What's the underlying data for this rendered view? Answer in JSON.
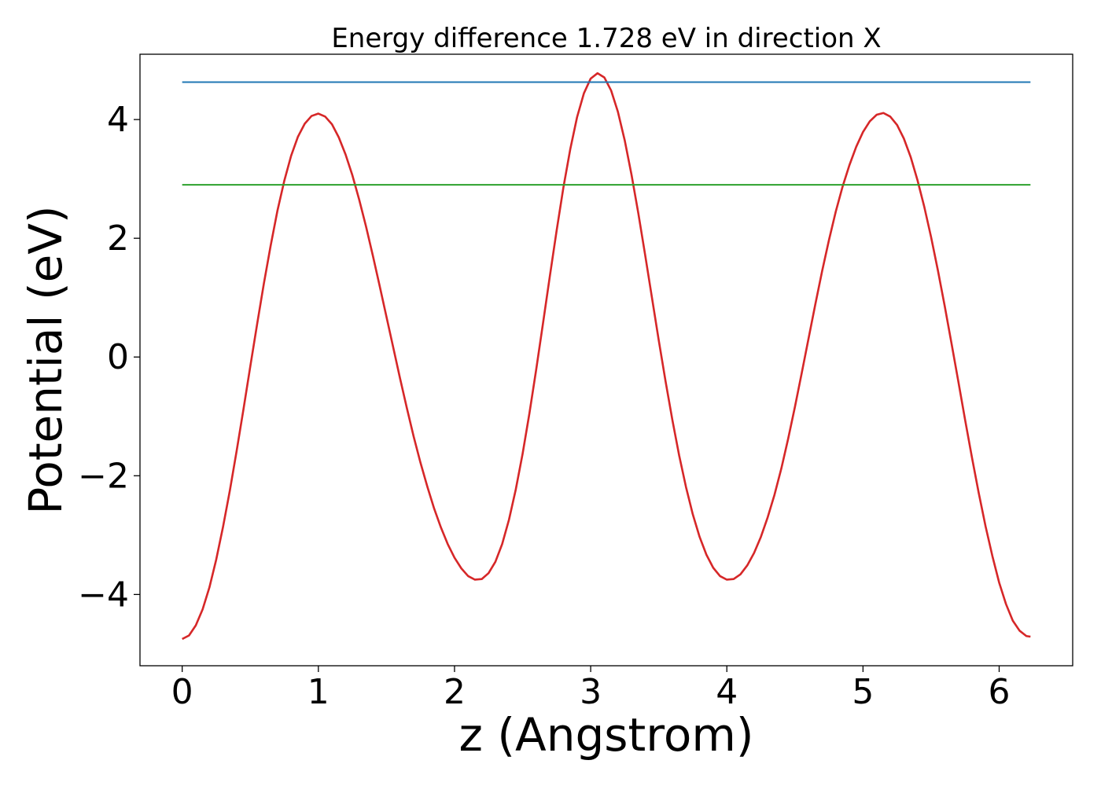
{
  "chart_data": {
    "type": "line",
    "title": "Energy difference 1.728 eV in direction X",
    "xlabel": "z (Angstrom)",
    "ylabel": "Potential (eV)",
    "xlim": [
      -0.31,
      6.54
    ],
    "ylim": [
      -5.2,
      5.1
    ],
    "xticks": [
      0,
      1,
      2,
      3,
      4,
      5,
      6
    ],
    "xtick_labels": [
      "0",
      "1",
      "2",
      "3",
      "4",
      "5",
      "6"
    ],
    "yticks": [
      -4,
      -2,
      0,
      2,
      4
    ],
    "ytick_labels": [
      "−4",
      "−2",
      "0",
      "2",
      "4"
    ],
    "grid": false,
    "legend": "none",
    "series": [
      {
        "color": "#d62728",
        "x": [
          0.0,
          0.05,
          0.1,
          0.15,
          0.2,
          0.25,
          0.3,
          0.35,
          0.4,
          0.45,
          0.5,
          0.55,
          0.6,
          0.65,
          0.7,
          0.75,
          0.8,
          0.85,
          0.9,
          0.95,
          1.0,
          1.05,
          1.1,
          1.15,
          1.2,
          1.25,
          1.3,
          1.35,
          1.4,
          1.45,
          1.5,
          1.55,
          1.6,
          1.65,
          1.7,
          1.75,
          1.8,
          1.85,
          1.9,
          1.95,
          2.0,
          2.05,
          2.1,
          2.15,
          2.2,
          2.25,
          2.3,
          2.35,
          2.4,
          2.45,
          2.5,
          2.55,
          2.6,
          2.65,
          2.7,
          2.75,
          2.8,
          2.85,
          2.9,
          2.95,
          3.0,
          3.05,
          3.1,
          3.15,
          3.2,
          3.25,
          3.3,
          3.35,
          3.4,
          3.45,
          3.5,
          3.55,
          3.6,
          3.65,
          3.7,
          3.75,
          3.8,
          3.85,
          3.9,
          3.95,
          4.0,
          4.05,
          4.1,
          4.15,
          4.2,
          4.25,
          4.3,
          4.35,
          4.4,
          4.45,
          4.5,
          4.55,
          4.6,
          4.65,
          4.7,
          4.75,
          4.8,
          4.85,
          4.9,
          4.95,
          5.0,
          5.05,
          5.1,
          5.15,
          5.2,
          5.25,
          5.3,
          5.35,
          5.4,
          5.45,
          5.5,
          5.55,
          5.6,
          5.65,
          5.7,
          5.75,
          5.8,
          5.85,
          5.9,
          5.95,
          6.0,
          6.05,
          6.1,
          6.15,
          6.2,
          6.23
        ],
        "y": [
          -4.75,
          -4.69,
          -4.52,
          -4.25,
          -3.88,
          -3.41,
          -2.86,
          -2.25,
          -1.58,
          -0.88,
          -0.16,
          0.55,
          1.24,
          1.88,
          2.47,
          2.97,
          3.39,
          3.71,
          3.93,
          4.06,
          4.1,
          4.05,
          3.92,
          3.7,
          3.41,
          3.06,
          2.65,
          2.2,
          1.71,
          1.2,
          0.68,
          0.16,
          -0.36,
          -0.86,
          -1.34,
          -1.78,
          -2.18,
          -2.55,
          -2.87,
          -3.15,
          -3.38,
          -3.56,
          -3.69,
          -3.75,
          -3.74,
          -3.64,
          -3.45,
          -3.15,
          -2.74,
          -2.23,
          -1.63,
          -0.95,
          -0.21,
          0.57,
          1.36,
          2.13,
          2.86,
          3.5,
          4.04,
          4.44,
          4.69,
          4.78,
          4.71,
          4.49,
          4.13,
          3.65,
          3.07,
          2.42,
          1.72,
          1.0,
          0.28,
          -0.41,
          -1.06,
          -1.66,
          -2.19,
          -2.65,
          -3.03,
          -3.33,
          -3.55,
          -3.69,
          -3.75,
          -3.74,
          -3.66,
          -3.51,
          -3.3,
          -3.03,
          -2.7,
          -2.32,
          -1.88,
          -1.38,
          -0.84,
          -0.27,
          0.31,
          0.89,
          1.45,
          1.97,
          2.45,
          2.87,
          3.23,
          3.54,
          3.79,
          3.97,
          4.08,
          4.11,
          4.05,
          3.91,
          3.68,
          3.37,
          2.98,
          2.53,
          2.02,
          1.46,
          0.86,
          0.23,
          -0.41,
          -1.06,
          -1.69,
          -2.29,
          -2.85,
          -3.35,
          -3.8,
          -4.16,
          -4.44,
          -4.61,
          -4.7,
          -4.71
        ]
      },
      {
        "color": "#1f77b4",
        "x": [
          0,
          6.23
        ],
        "y": [
          4.63,
          4.63
        ]
      },
      {
        "color": "#2ca02c",
        "x": [
          0,
          6.23
        ],
        "y": [
          2.9,
          2.9
        ]
      }
    ]
  }
}
